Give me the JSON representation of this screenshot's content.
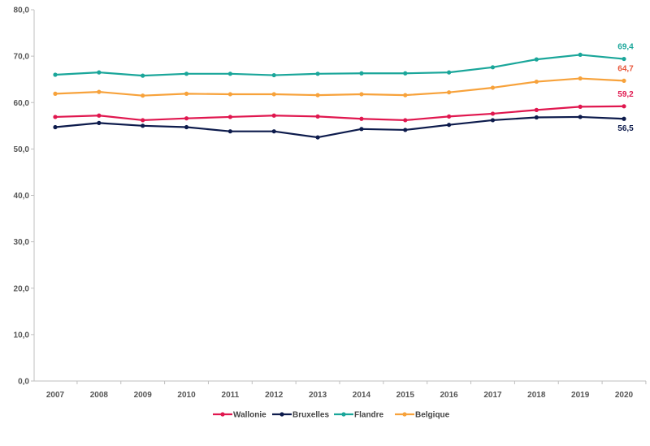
{
  "chart_data": {
    "type": "line",
    "title": "",
    "xlabel": "",
    "ylabel": "",
    "ylim": [
      0,
      80
    ],
    "yticks": [
      "0,0",
      "10,0",
      "20,0",
      "30,0",
      "40,0",
      "50,0",
      "60,0",
      "70,0",
      "80,0"
    ],
    "ytick_values": [
      0,
      10,
      20,
      30,
      40,
      50,
      60,
      70,
      80
    ],
    "categories": [
      "2007",
      "2008",
      "2009",
      "2010",
      "2011",
      "2012",
      "2013",
      "2014",
      "2015",
      "2016",
      "2017",
      "2018",
      "2019",
      "2020"
    ],
    "grid": false,
    "legend_position": "bottom",
    "series": [
      {
        "name": "Wallonie",
        "color": "#e0174f",
        "values": [
          56.9,
          57.2,
          56.2,
          56.6,
          56.9,
          57.2,
          57.0,
          56.5,
          56.2,
          57.0,
          57.6,
          58.4,
          59.1,
          59.2
        ],
        "end_label": "59,2"
      },
      {
        "name": "Bruxelles",
        "color": "#0d1b4c",
        "values": [
          54.7,
          55.6,
          55.0,
          54.7,
          53.8,
          53.8,
          52.5,
          54.3,
          54.1,
          55.2,
          56.2,
          56.8,
          56.9,
          56.5
        ],
        "end_label": "56,5"
      },
      {
        "name": "Flandre",
        "color": "#1aa69a",
        "values": [
          66.0,
          66.5,
          65.8,
          66.2,
          66.2,
          65.9,
          66.2,
          66.3,
          66.3,
          66.5,
          67.6,
          69.3,
          70.3,
          69.4
        ],
        "end_label": "69,4"
      },
      {
        "name": "Belgique",
        "color": "#f7a23b",
        "values": [
          61.9,
          62.3,
          61.5,
          61.9,
          61.8,
          61.8,
          61.6,
          61.8,
          61.6,
          62.2,
          63.2,
          64.5,
          65.2,
          64.7
        ],
        "end_label": "64,7",
        "end_label_color": "#e8553a"
      }
    ]
  }
}
